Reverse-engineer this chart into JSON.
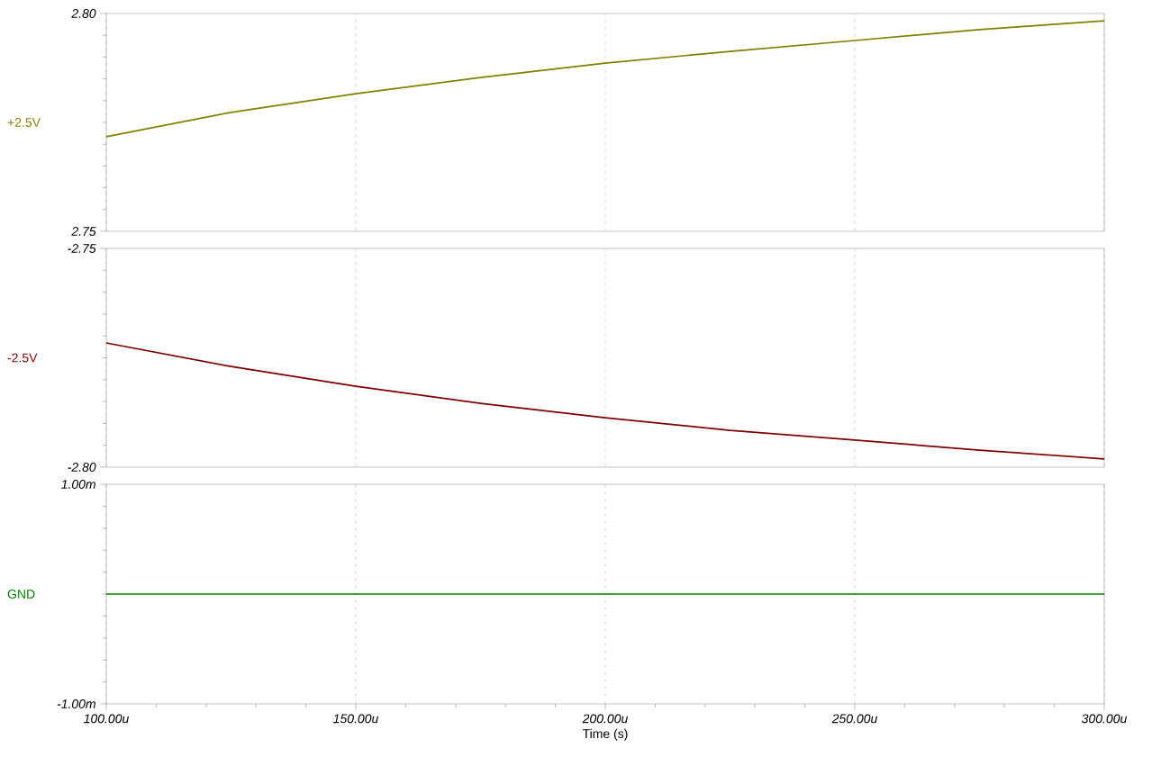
{
  "chart_data": [
    {
      "type": "line",
      "x": [
        100,
        125,
        150,
        175,
        200,
        225,
        250,
        275,
        300
      ],
      "xlim": [
        100,
        300
      ],
      "xticks": [
        100,
        150,
        200,
        250,
        300
      ],
      "ylim": [
        2.75,
        2.8
      ],
      "yticks": [
        2.75,
        {
          "value": 2.8,
          "label": "2.80"
        }
      ],
      "grid": "x",
      "tick_labels": "y",
      "series": [
        {
          "name": "+2.5V",
          "color": "#808000",
          "values": [
            2.7717,
            2.7773,
            2.7816,
            2.7853,
            2.7886,
            2.7913,
            2.7938,
            2.7963,
            2.7983
          ]
        }
      ]
    },
    {
      "type": "line",
      "x": [
        100,
        125,
        150,
        175,
        200,
        225,
        250,
        275,
        300
      ],
      "xlim": [
        100,
        300
      ],
      "xticks": [
        100,
        150,
        200,
        250,
        300
      ],
      "ylim": [
        -2.8,
        -2.75
      ],
      "yticks": [
        {
          "value": -2.8,
          "label": "-2.80"
        },
        -2.75
      ],
      "grid": "x",
      "tick_labels": "y",
      "series": [
        {
          "name": "-2.5V",
          "color": "#800000",
          "values": [
            -2.7716,
            -2.777,
            -2.7815,
            -2.7854,
            -2.7887,
            -2.7916,
            -2.7938,
            -2.7961,
            -2.7981
          ]
        }
      ]
    },
    {
      "type": "line",
      "x": [
        100,
        300
      ],
      "xlim": [
        100,
        300
      ],
      "xticks": [
        {
          "value": 100,
          "label": "100.00u"
        },
        {
          "value": 150,
          "label": "150.00u"
        },
        {
          "value": 200,
          "label": "200.00u"
        },
        {
          "value": 250,
          "label": "250.00u"
        },
        {
          "value": 300,
          "label": "300.00u"
        }
      ],
      "xlabel": "Time (s)",
      "ylim": [
        -1,
        1
      ],
      "yticks": [
        {
          "value": -1,
          "label": "-1.00m"
        },
        {
          "value": 1,
          "label": "1.00m"
        }
      ],
      "grid": "x",
      "series": [
        {
          "name": "GND",
          "color": "#008000",
          "values": [
            0,
            0
          ]
        }
      ]
    }
  ]
}
